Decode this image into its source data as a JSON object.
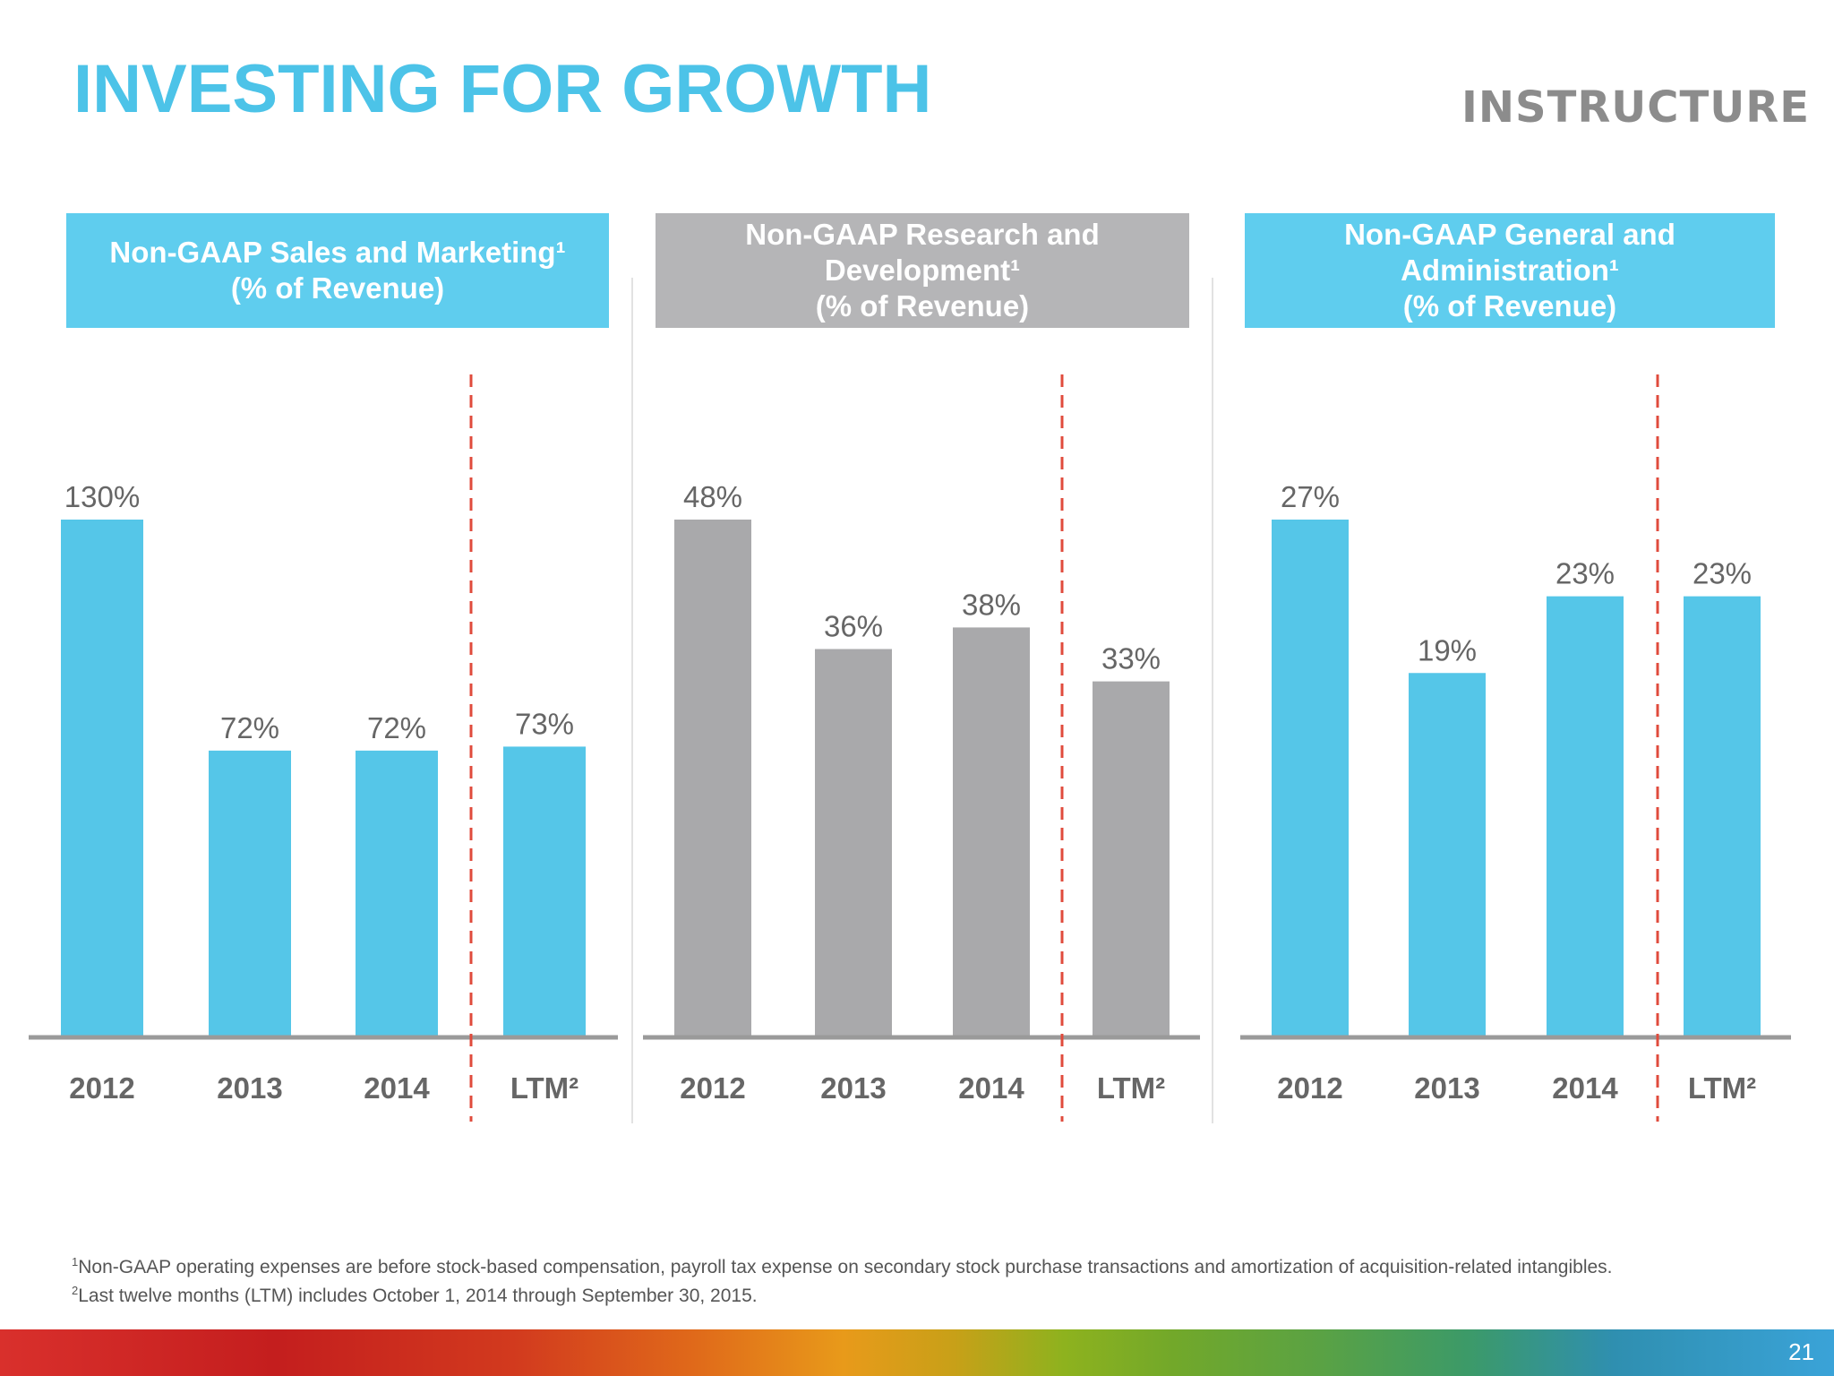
{
  "slide": {
    "title": "INVESTING FOR GROWTH",
    "logo_text": "INSTRUCTURE",
    "page_number": "21",
    "footnotes": [
      {
        "marker": "1",
        "text": "Non-GAAP operating expenses are before stock-based compensation, payroll tax expense on secondary stock purchase transactions and amortization of acquisition-related intangibles."
      },
      {
        "marker": "2",
        "text": "Last twelve months (LTM) includes October 1, 2014 through September 30, 2015."
      }
    ]
  },
  "colors": {
    "blue": "#55c6e8",
    "gray": "#a9a9ab",
    "header_blue": "#5fcdee",
    "header_gray": "#b5b5b7",
    "divider_red": "#e04b3c",
    "axis": "#9a9a9a",
    "text_gray": "#666666"
  },
  "chart_data": [
    {
      "type": "bar",
      "title_lines": [
        "Non-GAAP Sales and Marketing¹",
        "(% of Revenue)"
      ],
      "categories": [
        "2012",
        "2013",
        "2014",
        "LTM²"
      ],
      "values": [
        130,
        72,
        72,
        73
      ],
      "labels": [
        "130%",
        "72%",
        "72%",
        "73%"
      ],
      "color": "blue",
      "ylim": [
        0,
        130
      ]
    },
    {
      "type": "bar",
      "title_lines": [
        "Non-GAAP Research and",
        "Development¹",
        "(% of Revenue)"
      ],
      "categories": [
        "2012",
        "2013",
        "2014",
        "LTM²"
      ],
      "values": [
        48,
        36,
        38,
        33
      ],
      "labels": [
        "48%",
        "36%",
        "38%",
        "33%"
      ],
      "color": "gray",
      "ylim": [
        0,
        48
      ]
    },
    {
      "type": "bar",
      "title_lines": [
        "Non-GAAP General and",
        "Administration¹",
        "(% of Revenue)"
      ],
      "categories": [
        "2012",
        "2013",
        "2014",
        "LTM²"
      ],
      "values": [
        27,
        19,
        23,
        23
      ],
      "labels": [
        "27%",
        "19%",
        "23%",
        "23%"
      ],
      "color": "blue",
      "ylim": [
        0,
        27
      ]
    }
  ]
}
